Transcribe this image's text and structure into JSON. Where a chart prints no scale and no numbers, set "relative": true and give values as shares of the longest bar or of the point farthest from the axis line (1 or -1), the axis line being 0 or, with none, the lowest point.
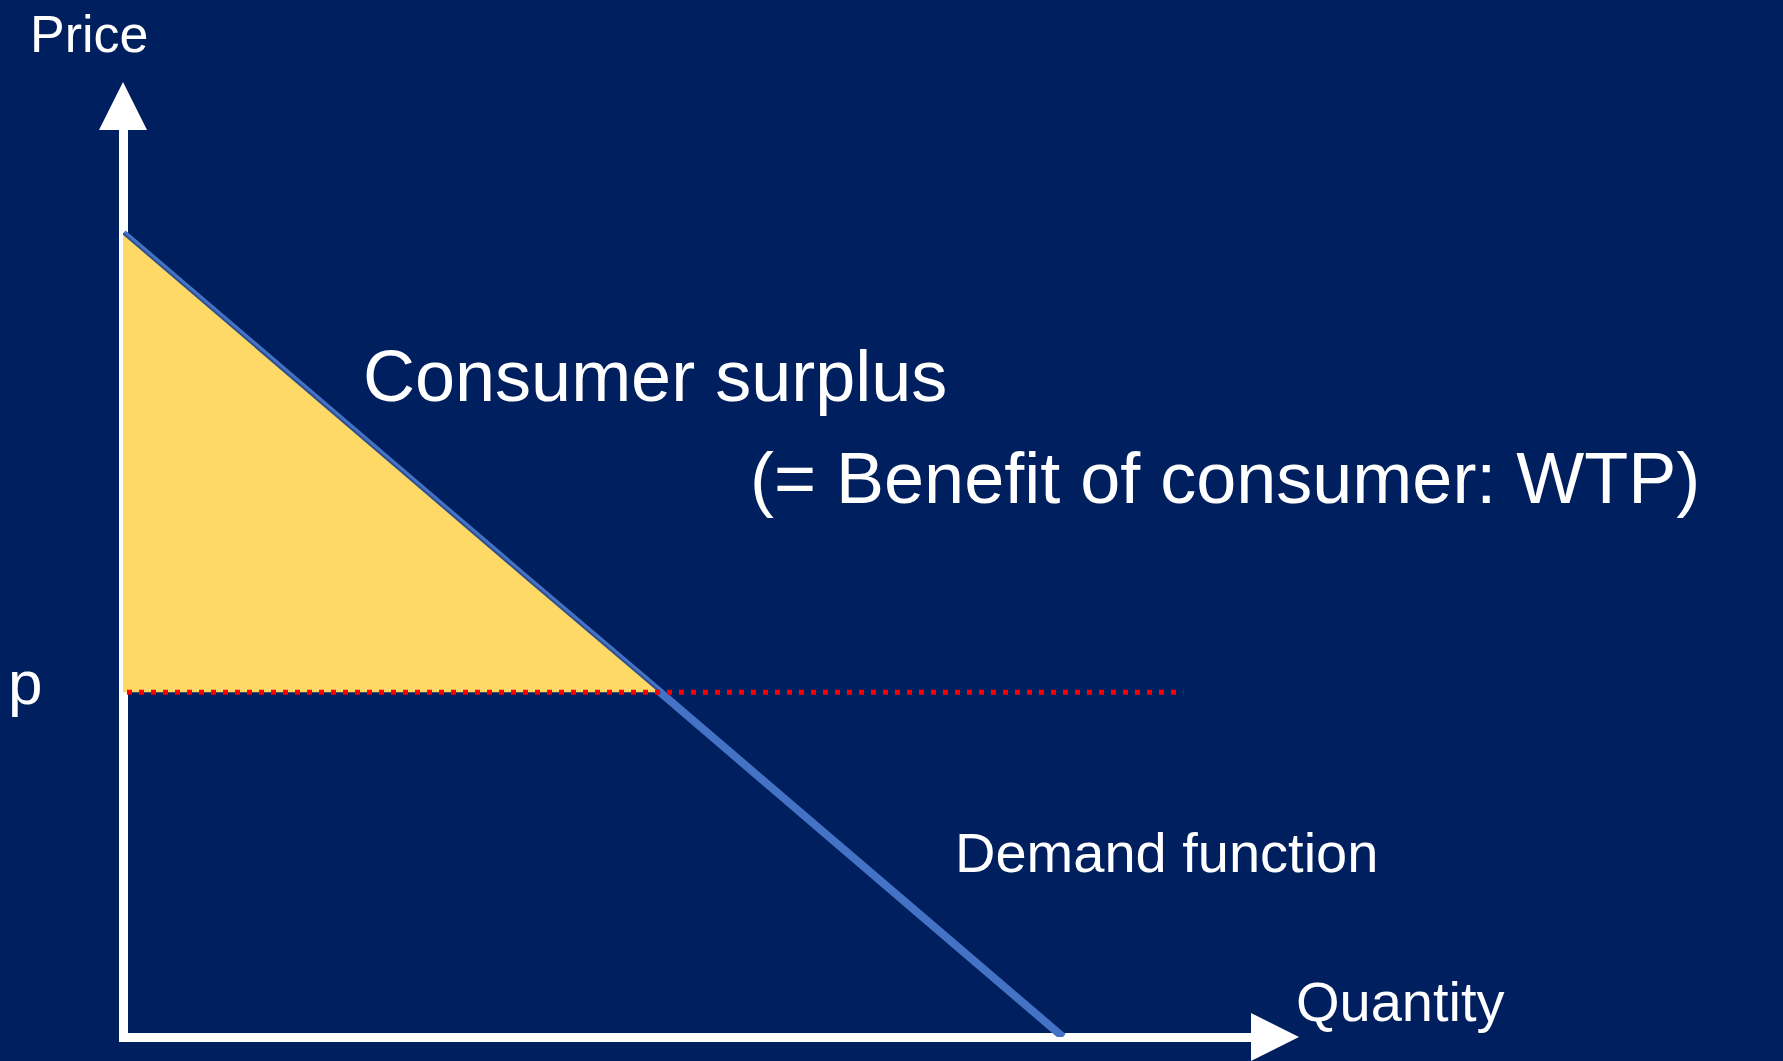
{
  "chart_data": {
    "type": "line",
    "relative": true,
    "xlabel": "Quantity",
    "ylabel": "Price",
    "categories": [
      null,
      null,
      null,
      null,
      null,
      null,
      null,
      null,
      null
    ],
    "series": [
      {
        "name": "Consumer surplus",
        "type": "area",
        "color": "#ffd966",
        "values": [
          1,
          0.857,
          0.714,
          0.571,
          0.429,
          null,
          null,
          null,
          null
        ]
      },
      {
        "name": "Demand function",
        "type": "line",
        "color": "#4472c4",
        "values": [
          1,
          0.857,
          0.714,
          0.571,
          0.429,
          0.286,
          0.143,
          0,
          null
        ]
      }
    ],
    "ref_lines": [
      {
        "axis": "y",
        "value": 0.429,
        "label": "p",
        "color": "#ff0000",
        "line_style": "dotted"
      }
    ],
    "annotations": [
      "(= Benefit of consumer: WTP)"
    ],
    "grid": false,
    "legend": false,
    "marker": "none",
    "line_style": "solid"
  }
}
